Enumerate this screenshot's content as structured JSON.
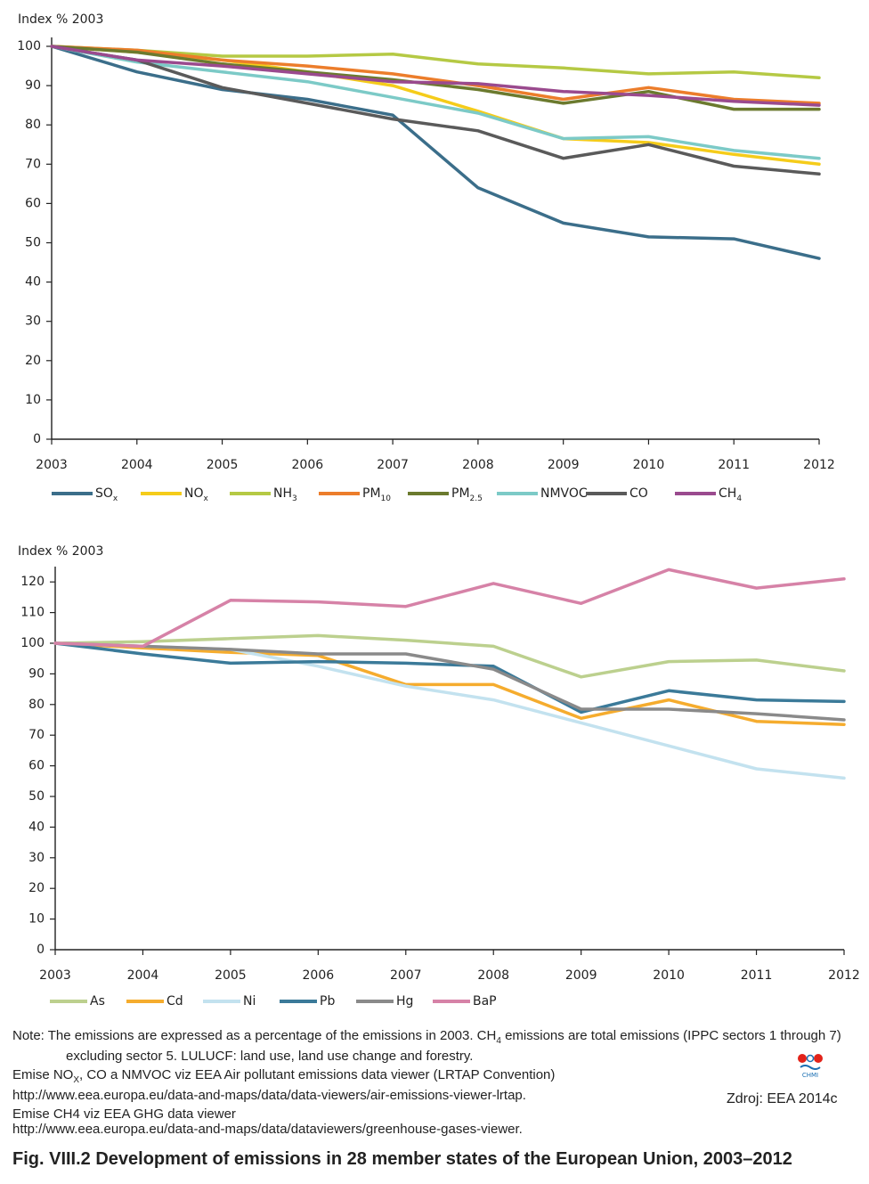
{
  "chart_data": [
    {
      "type": "line",
      "ylabel": "Index % 2003",
      "x": [
        "2003",
        "2004",
        "2005",
        "2006",
        "2007",
        "2008",
        "2009",
        "2010",
        "2011",
        "2012"
      ],
      "yticks": [
        0,
        10,
        20,
        30,
        40,
        50,
        60,
        70,
        80,
        90,
        100
      ],
      "ylim": [
        0,
        100
      ],
      "grid": false,
      "legend_position": "bottom",
      "series": [
        {
          "name": "SO",
          "sub": "x",
          "color": "#3b6e8a",
          "values": [
            100,
            93.5,
            89,
            86.5,
            82.5,
            64,
            55,
            51.5,
            51,
            46
          ]
        },
        {
          "name": "NO",
          "sub": "x",
          "color": "#f5cc1a",
          "values": [
            100,
            98.5,
            96.5,
            93.5,
            90,
            83.5,
            76.5,
            75.5,
            72.5,
            70
          ]
        },
        {
          "name": "NH",
          "sub": "3",
          "color": "#b5c944",
          "values": [
            100,
            99,
            97.5,
            97.5,
            98,
            95.5,
            94.5,
            93,
            93.5,
            92
          ]
        },
        {
          "name": "PM",
          "sub": "10",
          "color": "#ec7d2b",
          "values": [
            100,
            99,
            96.5,
            95,
            93,
            90,
            86.5,
            89.5,
            86.5,
            85.5
          ]
        },
        {
          "name": "PM",
          "sub": "2.5",
          "color": "#6b7a2e",
          "values": [
            100,
            98.5,
            95.5,
            93.5,
            91.5,
            89,
            85.5,
            88.5,
            84,
            84
          ]
        },
        {
          "name": "NMVOC",
          "sub": "",
          "color": "#7ccac7",
          "values": [
            100,
            96,
            93.5,
            91,
            87,
            83,
            76.5,
            77,
            73.5,
            71.5
          ]
        },
        {
          "name": "CO",
          "sub": "",
          "color": "#5a5a5a",
          "values": [
            100,
            96.5,
            89.5,
            85.5,
            81.5,
            78.5,
            71.5,
            75,
            69.5,
            67.5
          ]
        },
        {
          "name": "CH",
          "sub": "4",
          "color": "#9a4a8e",
          "values": [
            100,
            96.5,
            95,
            93,
            91,
            90.5,
            88.5,
            87.5,
            86,
            85
          ]
        }
      ]
    },
    {
      "type": "line",
      "ylabel": "Index % 2003",
      "x": [
        "2003",
        "2004",
        "2005",
        "2006",
        "2007",
        "2008",
        "2009",
        "2010",
        "2011",
        "2012"
      ],
      "yticks": [
        0,
        10,
        20,
        30,
        40,
        50,
        60,
        70,
        80,
        90,
        100,
        110,
        120
      ],
      "ylim": [
        0,
        125
      ],
      "grid": false,
      "legend_position": "bottom",
      "series": [
        {
          "name": "As",
          "sub": "",
          "color": "#bcd08e",
          "values": [
            100,
            100.5,
            101.5,
            102.5,
            101,
            99,
            89,
            94,
            94.5,
            91
          ]
        },
        {
          "name": "Cd",
          "sub": "",
          "color": "#f5ac2e",
          "values": [
            100,
            98.5,
            97,
            96,
            86.5,
            86.5,
            75.5,
            81.5,
            74.5,
            73.5
          ]
        },
        {
          "name": "Ni",
          "sub": "",
          "color": "#c3e2ef",
          "values": [
            100,
            99,
            98,
            92.5,
            86,
            81.5,
            74,
            66.5,
            59,
            56
          ]
        },
        {
          "name": "Pb",
          "sub": "",
          "color": "#3b7a99",
          "values": [
            100,
            96.5,
            93.5,
            94,
            93.5,
            92.5,
            77.5,
            84.5,
            81.5,
            81
          ]
        },
        {
          "name": "Hg",
          "sub": "",
          "color": "#8a8a8a",
          "values": [
            100,
            99,
            98,
            96.5,
            96.5,
            91.5,
            78.5,
            78.5,
            77,
            75
          ]
        },
        {
          "name": "BaP",
          "sub": "",
          "color": "#d682a7",
          "values": [
            100,
            99,
            114,
            113.5,
            112,
            119.5,
            113,
            124,
            118,
            121
          ]
        }
      ]
    }
  ],
  "notes": {
    "note_part1": "Note: The emissions are expressed as a percentage of the emissions in 2003. CH",
    "note_sub": "4",
    "note_part2": " emissions are total emissions (IPPC sectors 1 through 7) excluding sector 5. LULUCF: land use, land use change and forestry.",
    "line2_part1": "Emise NO",
    "line2_sub": "X",
    "line2_part2": ", CO a NMVOC viz EEA Air pollutant emissions data viewer (LRTAP Convention)",
    "line3": "http://www.eea.europa.eu/data-and-maps/data/data-viewers/air-emissions-viewer-lrtap.",
    "line4": "Emise CH4 viz EEA GHG data viewer",
    "line5": "http://www.eea.europa.eu/data-and-maps/data/dataviewers/greenhouse-gases-viewer."
  },
  "logo_text": "CHMI",
  "source": "Zdroj: EEA 2014c",
  "caption": "Fig. VIII.2  Development of emissions in 28 member states of the European Union, 2003–2012"
}
